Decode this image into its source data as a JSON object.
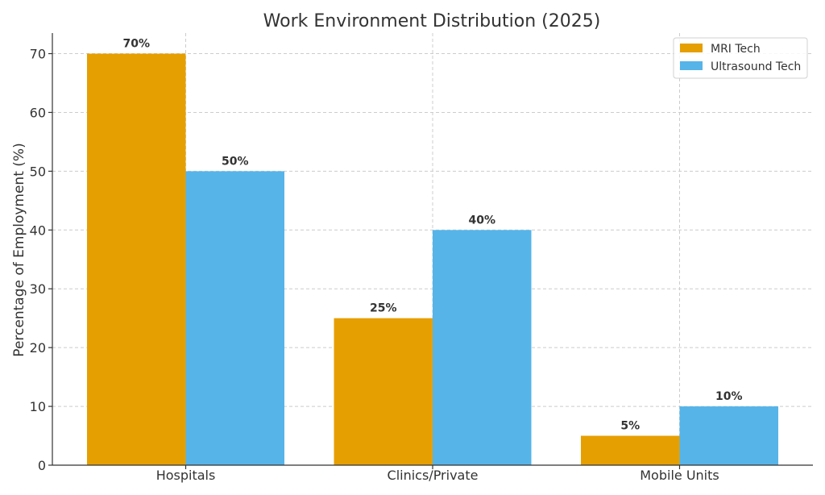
{
  "chart_data": {
    "type": "bar",
    "title": "Work Environment Distribution (2025)",
    "xlabel": "",
    "ylabel": "Percentage of Employment (%)",
    "categories": [
      "Hospitals",
      "Clinics/Private",
      "Mobile Units"
    ],
    "series": [
      {
        "name": "MRI Tech",
        "values": [
          70,
          25,
          5
        ],
        "labels": [
          "70%",
          "25%",
          "5%"
        ],
        "color": "#E69F00"
      },
      {
        "name": "Ultrasound Tech",
        "values": [
          50,
          40,
          10
        ],
        "labels": [
          "50%",
          "40%",
          "10%"
        ],
        "color": "#56B4E9"
      }
    ],
    "ylim": [
      0,
      73.5
    ],
    "yticks": [
      0,
      10,
      20,
      30,
      40,
      50,
      60,
      70
    ],
    "grid": true,
    "legend": "top-right"
  }
}
